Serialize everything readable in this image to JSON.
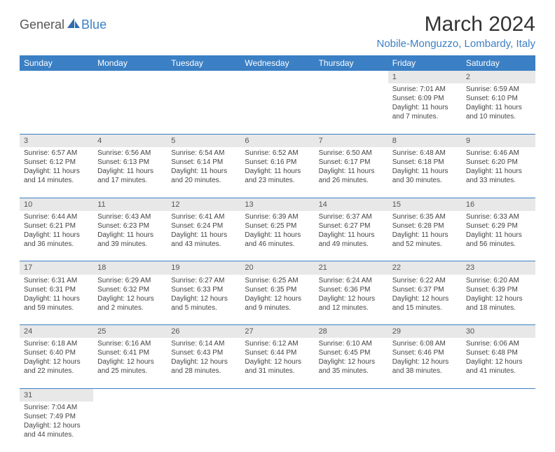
{
  "logo": {
    "part1": "General",
    "part2": "Blue"
  },
  "title": "March 2024",
  "location": "Nobile-Monguzzo, Lombardy, Italy",
  "colors": {
    "header_bg": "#3b7fc4",
    "header_text": "#ffffff",
    "daynum_bg": "#e8e8e8",
    "border": "#3b7fc4",
    "accent": "#3b7fc4",
    "body_text": "#444444"
  },
  "weekdays": [
    "Sunday",
    "Monday",
    "Tuesday",
    "Wednesday",
    "Thursday",
    "Friday",
    "Saturday"
  ],
  "weeks": [
    [
      null,
      null,
      null,
      null,
      null,
      {
        "n": "1",
        "sr": "Sunrise: 7:01 AM",
        "ss": "Sunset: 6:09 PM",
        "dl": "Daylight: 11 hours and 7 minutes."
      },
      {
        "n": "2",
        "sr": "Sunrise: 6:59 AM",
        "ss": "Sunset: 6:10 PM",
        "dl": "Daylight: 11 hours and 10 minutes."
      }
    ],
    [
      {
        "n": "3",
        "sr": "Sunrise: 6:57 AM",
        "ss": "Sunset: 6:12 PM",
        "dl": "Daylight: 11 hours and 14 minutes."
      },
      {
        "n": "4",
        "sr": "Sunrise: 6:56 AM",
        "ss": "Sunset: 6:13 PM",
        "dl": "Daylight: 11 hours and 17 minutes."
      },
      {
        "n": "5",
        "sr": "Sunrise: 6:54 AM",
        "ss": "Sunset: 6:14 PM",
        "dl": "Daylight: 11 hours and 20 minutes."
      },
      {
        "n": "6",
        "sr": "Sunrise: 6:52 AM",
        "ss": "Sunset: 6:16 PM",
        "dl": "Daylight: 11 hours and 23 minutes."
      },
      {
        "n": "7",
        "sr": "Sunrise: 6:50 AM",
        "ss": "Sunset: 6:17 PM",
        "dl": "Daylight: 11 hours and 26 minutes."
      },
      {
        "n": "8",
        "sr": "Sunrise: 6:48 AM",
        "ss": "Sunset: 6:18 PM",
        "dl": "Daylight: 11 hours and 30 minutes."
      },
      {
        "n": "9",
        "sr": "Sunrise: 6:46 AM",
        "ss": "Sunset: 6:20 PM",
        "dl": "Daylight: 11 hours and 33 minutes."
      }
    ],
    [
      {
        "n": "10",
        "sr": "Sunrise: 6:44 AM",
        "ss": "Sunset: 6:21 PM",
        "dl": "Daylight: 11 hours and 36 minutes."
      },
      {
        "n": "11",
        "sr": "Sunrise: 6:43 AM",
        "ss": "Sunset: 6:23 PM",
        "dl": "Daylight: 11 hours and 39 minutes."
      },
      {
        "n": "12",
        "sr": "Sunrise: 6:41 AM",
        "ss": "Sunset: 6:24 PM",
        "dl": "Daylight: 11 hours and 43 minutes."
      },
      {
        "n": "13",
        "sr": "Sunrise: 6:39 AM",
        "ss": "Sunset: 6:25 PM",
        "dl": "Daylight: 11 hours and 46 minutes."
      },
      {
        "n": "14",
        "sr": "Sunrise: 6:37 AM",
        "ss": "Sunset: 6:27 PM",
        "dl": "Daylight: 11 hours and 49 minutes."
      },
      {
        "n": "15",
        "sr": "Sunrise: 6:35 AM",
        "ss": "Sunset: 6:28 PM",
        "dl": "Daylight: 11 hours and 52 minutes."
      },
      {
        "n": "16",
        "sr": "Sunrise: 6:33 AM",
        "ss": "Sunset: 6:29 PM",
        "dl": "Daylight: 11 hours and 56 minutes."
      }
    ],
    [
      {
        "n": "17",
        "sr": "Sunrise: 6:31 AM",
        "ss": "Sunset: 6:31 PM",
        "dl": "Daylight: 11 hours and 59 minutes."
      },
      {
        "n": "18",
        "sr": "Sunrise: 6:29 AM",
        "ss": "Sunset: 6:32 PM",
        "dl": "Daylight: 12 hours and 2 minutes."
      },
      {
        "n": "19",
        "sr": "Sunrise: 6:27 AM",
        "ss": "Sunset: 6:33 PM",
        "dl": "Daylight: 12 hours and 5 minutes."
      },
      {
        "n": "20",
        "sr": "Sunrise: 6:25 AM",
        "ss": "Sunset: 6:35 PM",
        "dl": "Daylight: 12 hours and 9 minutes."
      },
      {
        "n": "21",
        "sr": "Sunrise: 6:24 AM",
        "ss": "Sunset: 6:36 PM",
        "dl": "Daylight: 12 hours and 12 minutes."
      },
      {
        "n": "22",
        "sr": "Sunrise: 6:22 AM",
        "ss": "Sunset: 6:37 PM",
        "dl": "Daylight: 12 hours and 15 minutes."
      },
      {
        "n": "23",
        "sr": "Sunrise: 6:20 AM",
        "ss": "Sunset: 6:39 PM",
        "dl": "Daylight: 12 hours and 18 minutes."
      }
    ],
    [
      {
        "n": "24",
        "sr": "Sunrise: 6:18 AM",
        "ss": "Sunset: 6:40 PM",
        "dl": "Daylight: 12 hours and 22 minutes."
      },
      {
        "n": "25",
        "sr": "Sunrise: 6:16 AM",
        "ss": "Sunset: 6:41 PM",
        "dl": "Daylight: 12 hours and 25 minutes."
      },
      {
        "n": "26",
        "sr": "Sunrise: 6:14 AM",
        "ss": "Sunset: 6:43 PM",
        "dl": "Daylight: 12 hours and 28 minutes."
      },
      {
        "n": "27",
        "sr": "Sunrise: 6:12 AM",
        "ss": "Sunset: 6:44 PM",
        "dl": "Daylight: 12 hours and 31 minutes."
      },
      {
        "n": "28",
        "sr": "Sunrise: 6:10 AM",
        "ss": "Sunset: 6:45 PM",
        "dl": "Daylight: 12 hours and 35 minutes."
      },
      {
        "n": "29",
        "sr": "Sunrise: 6:08 AM",
        "ss": "Sunset: 6:46 PM",
        "dl": "Daylight: 12 hours and 38 minutes."
      },
      {
        "n": "30",
        "sr": "Sunrise: 6:06 AM",
        "ss": "Sunset: 6:48 PM",
        "dl": "Daylight: 12 hours and 41 minutes."
      }
    ],
    [
      {
        "n": "31",
        "sr": "Sunrise: 7:04 AM",
        "ss": "Sunset: 7:49 PM",
        "dl": "Daylight: 12 hours and 44 minutes."
      },
      null,
      null,
      null,
      null,
      null,
      null
    ]
  ]
}
